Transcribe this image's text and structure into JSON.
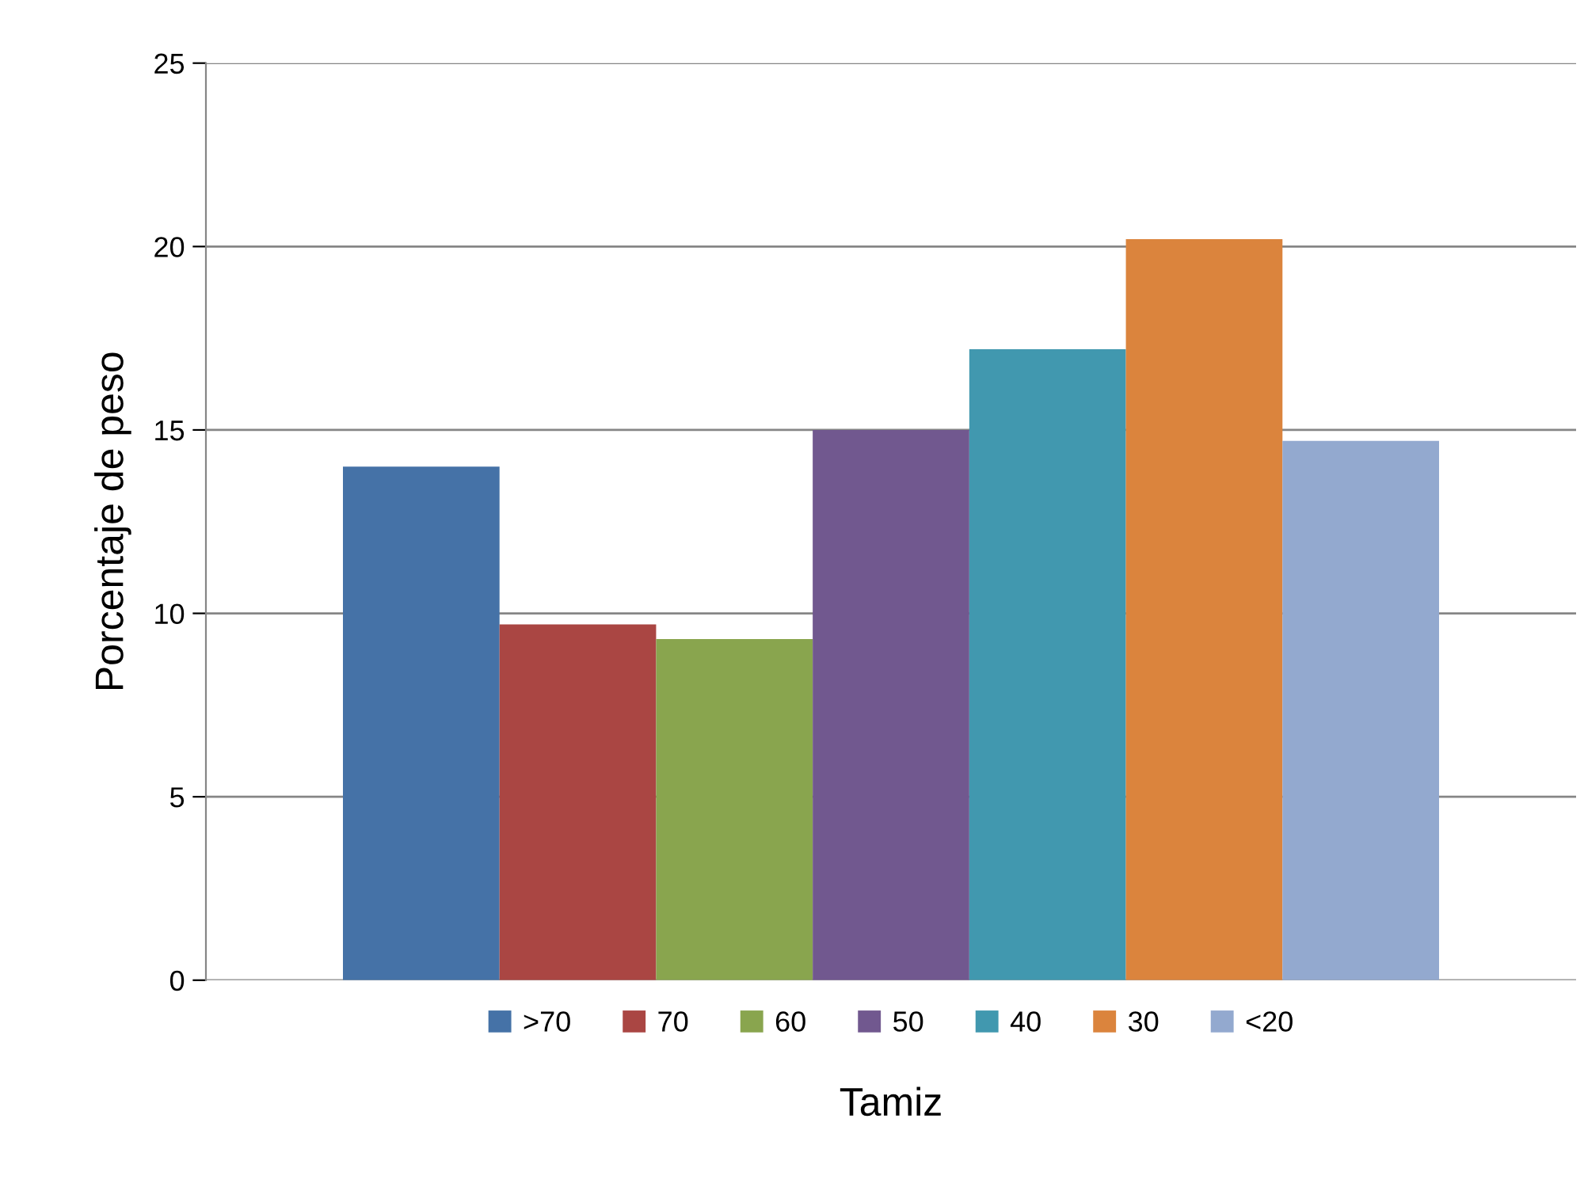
{
  "chart_data": {
    "type": "bar",
    "xlabel": "Tamiz",
    "ylabel": "Porcentaje de peso",
    "categories": [
      null
    ],
    "series": [
      {
        "name": ">70",
        "color": "#4572a7",
        "values": [
          14
        ]
      },
      {
        "name": "70",
        "color": "#aa4643",
        "values": [
          9.7
        ]
      },
      {
        "name": "60",
        "color": "#89a54e",
        "values": [
          9.3
        ]
      },
      {
        "name": "50",
        "color": "#71588f",
        "values": [
          15
        ]
      },
      {
        "name": "40",
        "color": "#4198af",
        "values": [
          17.2
        ]
      },
      {
        "name": "30",
        "color": "#db843d",
        "values": [
          20.2
        ]
      },
      {
        "name": "<20",
        "color": "#93a9cf",
        "values": [
          14.7
        ]
      }
    ],
    "ylim": [
      0,
      25
    ],
    "yticks": [
      0,
      5,
      10,
      15,
      20,
      25
    ],
    "grid": "y",
    "legend": "bottom"
  }
}
